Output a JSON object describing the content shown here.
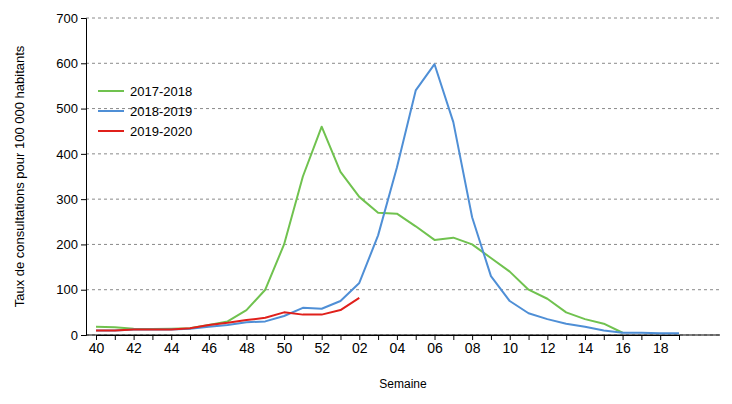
{
  "chart_data": {
    "type": "line",
    "x_label": "Semaine",
    "y_label": "Taux de consultations pour 100 000 habitants",
    "categories": [
      "40",
      null,
      "42",
      null,
      "44",
      null,
      "46",
      null,
      "48",
      null,
      "50",
      null,
      "52",
      null,
      "02",
      null,
      "04",
      null,
      "06",
      null,
      "08",
      null,
      "10",
      null,
      "12",
      null,
      "14",
      null,
      "16",
      null,
      "18",
      null
    ],
    "series": [
      {
        "name": "2017-2018",
        "color": "#70c24f",
        "values": [
          18,
          17,
          14,
          13,
          14,
          15,
          22,
          30,
          55,
          100,
          200,
          350,
          460,
          360,
          305,
          270,
          268,
          240,
          210,
          215,
          200,
          170,
          140,
          100,
          80,
          50,
          35,
          25,
          5,
          null,
          null,
          null
        ]
      },
      {
        "name": "2018-2019",
        "color": "#4f8fd6",
        "values": [
          10,
          10,
          12,
          12,
          12,
          14,
          18,
          22,
          28,
          30,
          42,
          60,
          58,
          75,
          115,
          220,
          370,
          540,
          598,
          470,
          260,
          130,
          75,
          48,
          35,
          25,
          18,
          10,
          5,
          5,
          4,
          4
        ]
      },
      {
        "name": "2019-2020",
        "color": "#e0201b",
        "values": [
          10,
          10,
          12,
          12,
          12,
          15,
          22,
          27,
          33,
          38,
          50,
          45,
          45,
          55,
          82,
          null,
          null,
          null,
          null,
          null,
          null,
          null,
          null,
          null,
          null,
          null,
          null,
          null,
          null,
          null,
          null,
          null
        ]
      }
    ],
    "ylim": [
      0,
      700
    ],
    "yticks": [
      0,
      100,
      200,
      300,
      400,
      500,
      600,
      700
    ],
    "grid": true,
    "legend": "upper left"
  }
}
